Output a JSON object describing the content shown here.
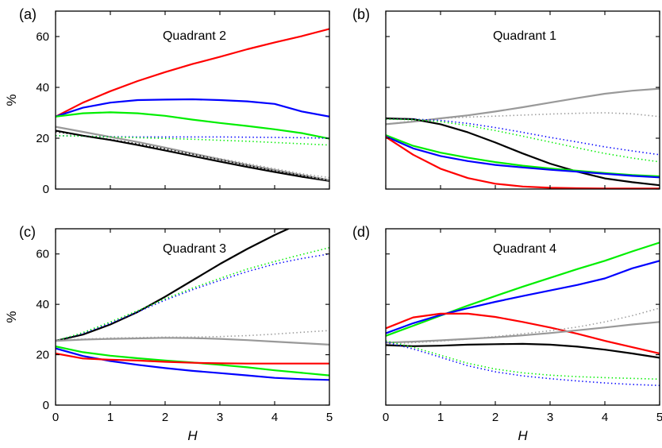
{
  "chart_data": [
    {
      "type": "line",
      "panel": "(a)",
      "title": "Quadrant 2",
      "xlabel": "",
      "ylabel": "%",
      "xlim": [
        0,
        5
      ],
      "ylim": [
        0,
        70
      ],
      "xticks": [],
      "yticks": [
        "0",
        "20",
        "40",
        "60"
      ],
      "grid": false,
      "legend": "none",
      "series": [
        {
          "color": "#ff0000",
          "style": "solid",
          "x": [
            0,
            0.5,
            1,
            1.5,
            2,
            2.5,
            3,
            3.5,
            4,
            4.5,
            5
          ],
          "y": [
            28.5,
            34,
            38.5,
            42.5,
            46,
            49.2,
            52,
            55,
            57.7,
            60.2,
            63
          ]
        },
        {
          "color": "#0000ff",
          "style": "solid",
          "x": [
            0,
            0.5,
            1,
            1.5,
            2,
            2.5,
            3,
            3.5,
            4,
            4.5,
            5
          ],
          "y": [
            28.5,
            32,
            34,
            35,
            35.2,
            35.3,
            35,
            34.5,
            33.5,
            30.5,
            28.5
          ]
        },
        {
          "color": "#00ee00",
          "style": "solid",
          "x": [
            0,
            0.5,
            1,
            1.5,
            2,
            2.5,
            3,
            3.5,
            4,
            4.5,
            5
          ],
          "y": [
            28.5,
            29.8,
            30.2,
            29.8,
            28.8,
            27.3,
            26,
            24.8,
            23.5,
            22,
            19.8
          ]
        },
        {
          "color": "#000000",
          "style": "solid",
          "x": [
            0,
            0.5,
            1,
            1.5,
            2,
            2.5,
            3,
            3.5,
            4,
            4.5,
            5
          ],
          "y": [
            23,
            21,
            19.3,
            17.3,
            15.2,
            13,
            10.8,
            8.7,
            6.7,
            4.8,
            3.2
          ]
        },
        {
          "color": "#999999",
          "style": "solid",
          "x": [
            0,
            0.5,
            1,
            1.5,
            2,
            2.5,
            3,
            3.5,
            4,
            4.5,
            5
          ],
          "y": [
            24.5,
            22.5,
            20.5,
            18.5,
            16.3,
            14,
            11.7,
            9.5,
            7.5,
            5.5,
            3.5
          ]
        },
        {
          "color": "#0000ff",
          "style": "dotted",
          "x": [
            0,
            0.5,
            1,
            1.5,
            2,
            2.5,
            3,
            3.5,
            4,
            4.5,
            5
          ],
          "y": [
            21,
            20.8,
            20.6,
            20.5,
            20.5,
            20.5,
            20.5,
            20.4,
            20.3,
            20.2,
            20
          ]
        },
        {
          "color": "#00ee00",
          "style": "dotted",
          "x": [
            0,
            0.5,
            1,
            1.5,
            2,
            2.5,
            3,
            3.5,
            4,
            4.5,
            5
          ],
          "y": [
            21,
            20.8,
            20.5,
            20.2,
            19.9,
            19.6,
            19.2,
            18.8,
            18.3,
            17.8,
            17.3
          ]
        },
        {
          "color": "#999999",
          "style": "dotted",
          "x": [
            0,
            0.5,
            1,
            1.5,
            2,
            2.5,
            3,
            3.5,
            4,
            4.5,
            5
          ],
          "y": [
            24.5,
            22.5,
            20.5,
            18.5,
            16.3,
            14,
            12,
            10,
            8,
            6,
            4.5
          ]
        },
        {
          "color": "#000000",
          "style": "dotted",
          "x": [
            0,
            0.5,
            1,
            1.5,
            2,
            2.5,
            3,
            3.5,
            4,
            4.5,
            5
          ],
          "y": [
            22.5,
            21,
            19.5,
            17.8,
            15.8,
            13.7,
            11.5,
            9.3,
            7.2,
            5.3,
            3.5
          ]
        }
      ]
    },
    {
      "type": "line",
      "panel": "(b)",
      "title": "Quadrant 1",
      "xlabel": "",
      "ylabel": "",
      "xlim": [
        0,
        5
      ],
      "ylim": [
        0,
        70
      ],
      "xticks": [],
      "yticks": [],
      "grid": false,
      "legend": "none",
      "series": [
        {
          "color": "#999999",
          "style": "solid",
          "x": [
            0,
            0.5,
            1,
            1.5,
            2,
            2.5,
            3,
            3.5,
            4,
            4.5,
            5
          ],
          "y": [
            25.5,
            26.5,
            27.8,
            29,
            30.5,
            32.2,
            34,
            35.8,
            37.5,
            38.7,
            39.5
          ]
        },
        {
          "color": "#000000",
          "style": "solid",
          "x": [
            0,
            0.5,
            1,
            1.5,
            2,
            2.5,
            3,
            3.5,
            4,
            4.5,
            5
          ],
          "y": [
            27.8,
            27.5,
            25.5,
            22.3,
            18.3,
            14,
            10,
            6.8,
            4.2,
            2.7,
            1.5
          ]
        },
        {
          "color": "#00ee00",
          "style": "solid",
          "x": [
            0,
            0.5,
            1,
            1.5,
            2,
            2.5,
            3,
            3.5,
            4,
            4.5,
            5
          ],
          "y": [
            21.2,
            17,
            14.3,
            12.3,
            10.6,
            9.2,
            8.1,
            7.2,
            6.3,
            5.5,
            5
          ]
        },
        {
          "color": "#0000ff",
          "style": "solid",
          "x": [
            0,
            0.5,
            1,
            1.5,
            2,
            2.5,
            3,
            3.5,
            4,
            4.5,
            5
          ],
          "y": [
            20.7,
            16,
            13,
            11,
            9.5,
            8.5,
            7.6,
            6.8,
            6,
            5.2,
            4.6
          ]
        },
        {
          "color": "#ff0000",
          "style": "solid",
          "x": [
            0,
            0.5,
            1,
            1.5,
            2,
            2.5,
            3,
            3.5,
            4,
            4.5,
            5
          ],
          "y": [
            20.5,
            13.5,
            8,
            4.3,
            2.1,
            1,
            0.5,
            0.3,
            0.2,
            0.2,
            0.2
          ]
        },
        {
          "color": "#999999",
          "style": "dotted",
          "x": [
            0,
            0.5,
            1,
            1.5,
            2,
            2.5,
            3,
            3.5,
            4,
            4.5,
            5
          ],
          "y": [
            25.5,
            26.8,
            27.8,
            28.3,
            28.7,
            29.1,
            29.5,
            29.8,
            30,
            29.6,
            28.5
          ]
        },
        {
          "color": "#0000ff",
          "style": "dotted",
          "x": [
            0,
            0.5,
            1,
            1.5,
            2,
            2.5,
            3,
            3.5,
            4,
            4.5,
            5
          ],
          "y": [
            27.5,
            27.5,
            27,
            25.8,
            24.2,
            22.3,
            20.3,
            18.5,
            16.6,
            15,
            13.5
          ]
        },
        {
          "color": "#00ee00",
          "style": "dotted",
          "x": [
            0,
            0.5,
            1,
            1.5,
            2,
            2.5,
            3,
            3.5,
            4,
            4.5,
            5
          ],
          "y": [
            27.5,
            27.3,
            26.5,
            25,
            23,
            20.8,
            18.5,
            16.2,
            14,
            12.2,
            10.7
          ]
        }
      ]
    },
    {
      "type": "line",
      "panel": "(c)",
      "title": "Quadrant 3",
      "xlabel": "H",
      "ylabel": "%",
      "xlim": [
        0,
        5
      ],
      "ylim": [
        0,
        70
      ],
      "xticks": [
        "0",
        "1",
        "2",
        "3",
        "4",
        "5"
      ],
      "yticks": [
        "0",
        "20",
        "40",
        "60"
      ],
      "grid": false,
      "legend": "none",
      "series": [
        {
          "color": "#000000",
          "style": "solid",
          "x": [
            0,
            0.5,
            1,
            1.5,
            2,
            2.5,
            3,
            3.5,
            4,
            4.25
          ],
          "y": [
            25.5,
            28,
            32,
            37,
            43,
            49.5,
            56,
            62,
            67.5,
            70
          ]
        },
        {
          "color": "#0000ff",
          "style": "dotted",
          "x": [
            0,
            0.5,
            1,
            1.5,
            2,
            2.5,
            3,
            3.5,
            4,
            4.5,
            5
          ],
          "y": [
            25.5,
            28.5,
            32.5,
            37,
            41.7,
            45.8,
            49.5,
            53,
            56,
            58.2,
            60
          ]
        },
        {
          "color": "#00ee00",
          "style": "dotted",
          "x": [
            0,
            0.5,
            1,
            1.5,
            2,
            2.5,
            3,
            3.5,
            4,
            4.5,
            5
          ],
          "y": [
            25.5,
            28.8,
            33,
            37.5,
            42.2,
            46.4,
            50.3,
            54,
            57,
            59.8,
            62.5
          ]
        },
        {
          "color": "#999999",
          "style": "dotted",
          "x": [
            0,
            0.5,
            1,
            1.5,
            2,
            2.5,
            3,
            3.5,
            4,
            4.5,
            5
          ],
          "y": [
            25.8,
            26.2,
            26.6,
            26.8,
            27,
            27,
            27.2,
            27.6,
            28.2,
            28.9,
            29.6
          ]
        },
        {
          "color": "#999999",
          "style": "solid",
          "x": [
            0,
            0.5,
            1,
            1.5,
            2,
            2.5,
            3,
            3.5,
            4,
            4.5,
            5
          ],
          "y": [
            25.5,
            26,
            26.3,
            26.5,
            26.7,
            26.6,
            26.3,
            25.8,
            25.2,
            24.6,
            24
          ]
        },
        {
          "color": "#00ee00",
          "style": "solid",
          "x": [
            0,
            0.5,
            1,
            1.5,
            2,
            2.5,
            3,
            3.5,
            4,
            4.5,
            5
          ],
          "y": [
            23.3,
            21,
            19.6,
            18.6,
            17.7,
            16.9,
            16,
            15,
            13.8,
            12.8,
            11.8
          ]
        },
        {
          "color": "#0000ff",
          "style": "solid",
          "x": [
            0,
            0.5,
            1,
            1.5,
            2,
            2.5,
            3,
            3.5,
            4,
            4.5,
            5
          ],
          "y": [
            22.5,
            19.5,
            17.5,
            16,
            14.7,
            13.6,
            12.7,
            11.8,
            10.8,
            10.3,
            10
          ]
        },
        {
          "color": "#ff0000",
          "style": "solid",
          "x": [
            0,
            0.5,
            1,
            1.5,
            2,
            2.5,
            3,
            3.5,
            4,
            4.5,
            5
          ],
          "y": [
            20.5,
            18.5,
            18,
            17.7,
            17.2,
            16.8,
            16.6,
            16.5,
            16.5,
            16.5,
            16.5
          ]
        }
      ]
    },
    {
      "type": "line",
      "panel": "(d)",
      "title": "Quadrant 4",
      "xlabel": "H",
      "ylabel": "",
      "xlim": [
        0,
        5
      ],
      "ylim": [
        0,
        70
      ],
      "xticks": [
        "0",
        "1",
        "2",
        "3",
        "4",
        "5"
      ],
      "yticks": [],
      "grid": false,
      "legend": "none",
      "series": [
        {
          "color": "#00ee00",
          "style": "solid",
          "x": [
            0,
            0.5,
            1,
            1.5,
            2,
            2.5,
            3,
            3.5,
            4,
            4.5,
            5
          ],
          "y": [
            27.5,
            31.5,
            35.5,
            39.5,
            43.3,
            47,
            50.5,
            54,
            57.3,
            61,
            64.5
          ]
        },
        {
          "color": "#0000ff",
          "style": "solid",
          "x": [
            0,
            0.5,
            1,
            1.5,
            2,
            2.5,
            3,
            3.5,
            4,
            4.5,
            5
          ],
          "y": [
            28.5,
            32.5,
            35.8,
            38.5,
            41,
            43.3,
            45.5,
            47.7,
            50.3,
            54.3,
            57.3
          ]
        },
        {
          "color": "#ff0000",
          "style": "solid",
          "x": [
            0,
            0.5,
            1,
            1.5,
            2,
            2.5,
            3,
            3.5,
            4,
            4.5,
            5
          ],
          "y": [
            30.5,
            34.8,
            36.3,
            36.3,
            35,
            33,
            30.8,
            28.3,
            25.5,
            23,
            20.5
          ]
        },
        {
          "color": "#999999",
          "style": "dotted",
          "x": [
            0,
            0.5,
            1,
            1.5,
            2,
            2.5,
            3,
            3.5,
            4,
            4.5,
            5
          ],
          "y": [
            24.3,
            24.8,
            25.4,
            26.2,
            27.2,
            28.3,
            29.5,
            31,
            33,
            35.5,
            38.5
          ]
        },
        {
          "color": "#999999",
          "style": "solid",
          "x": [
            0,
            0.5,
            1,
            1.5,
            2,
            2.5,
            3,
            3.5,
            4,
            4.5,
            5
          ],
          "y": [
            24.8,
            25.2,
            25.7,
            26.3,
            26.9,
            27.7,
            28.6,
            29.7,
            30.8,
            32,
            33
          ]
        },
        {
          "color": "#000000",
          "style": "solid",
          "x": [
            0,
            0.5,
            1,
            1.5,
            2,
            2.5,
            3,
            3.5,
            4,
            4.5,
            5
          ],
          "y": [
            23.8,
            23.4,
            23.6,
            24,
            24.2,
            24.3,
            24,
            23.2,
            22,
            20.5,
            18.8
          ]
        },
        {
          "color": "#00ee00",
          "style": "dotted",
          "x": [
            0,
            0.5,
            1,
            1.5,
            2,
            2.5,
            3,
            3.5,
            4,
            4.5,
            5
          ],
          "y": [
            25.5,
            23,
            19.8,
            16.6,
            14.3,
            12.8,
            11.9,
            11.3,
            10.9,
            10.6,
            10.3
          ]
        },
        {
          "color": "#0000ff",
          "style": "dotted",
          "x": [
            0,
            0.5,
            1,
            1.5,
            2,
            2.5,
            3,
            3.5,
            4,
            4.5,
            5
          ],
          "y": [
            25,
            22.3,
            19,
            15.6,
            13.2,
            11.6,
            10.5,
            9.6,
            8.8,
            8.2,
            7.8
          ]
        }
      ]
    }
  ]
}
